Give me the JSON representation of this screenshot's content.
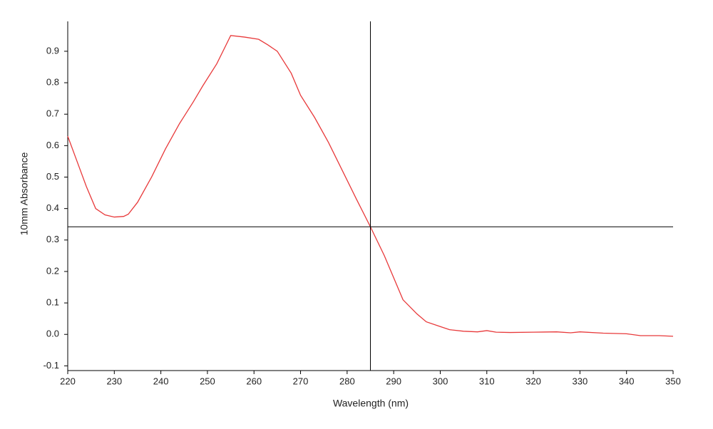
{
  "chart_data": {
    "type": "line",
    "x_label": "Wavelength (nm)",
    "y_label": "10mm Absorbance",
    "x": [
      220,
      222,
      224,
      226,
      228,
      230,
      232,
      233,
      235,
      238,
      241,
      244,
      247,
      249,
      252,
      254,
      255,
      258,
      261,
      263,
      265,
      268,
      270,
      273,
      276,
      279,
      282,
      285,
      288,
      290,
      292,
      295,
      297,
      300,
      302,
      305,
      308,
      310,
      312,
      315,
      320,
      325,
      328,
      330,
      335,
      340,
      343,
      347,
      350
    ],
    "series": [
      {
        "color": "#e8393a",
        "values": [
          0.63,
          0.55,
          0.47,
          0.4,
          0.38,
          0.373,
          0.375,
          0.382,
          0.42,
          0.5,
          0.59,
          0.67,
          0.74,
          0.79,
          0.86,
          0.92,
          0.95,
          0.945,
          0.938,
          0.92,
          0.9,
          0.83,
          0.76,
          0.69,
          0.61,
          0.52,
          0.43,
          0.342,
          0.25,
          0.18,
          0.11,
          0.065,
          0.04,
          0.025,
          0.015,
          0.01,
          0.008,
          0.012,
          0.007,
          0.006,
          0.007,
          0.008,
          0.005,
          0.008,
          0.004,
          0.002,
          -0.004,
          -0.004,
          -0.006
        ]
      }
    ],
    "xlim": [
      220,
      350
    ],
    "xticks": [
      220,
      230,
      240,
      250,
      260,
      270,
      280,
      290,
      300,
      310,
      320,
      330,
      340,
      350
    ],
    "ylim": [
      -0.115,
      0.995
    ],
    "yticks": [
      -0.1,
      {
        "value": 0,
        "label": "0.0"
      },
      0.1,
      0.2,
      0.3,
      0.4,
      0.5,
      0.6,
      0.7,
      0.8,
      0.9
    ],
    "cursor": {
      "x": 285,
      "y": 0.342
    }
  }
}
